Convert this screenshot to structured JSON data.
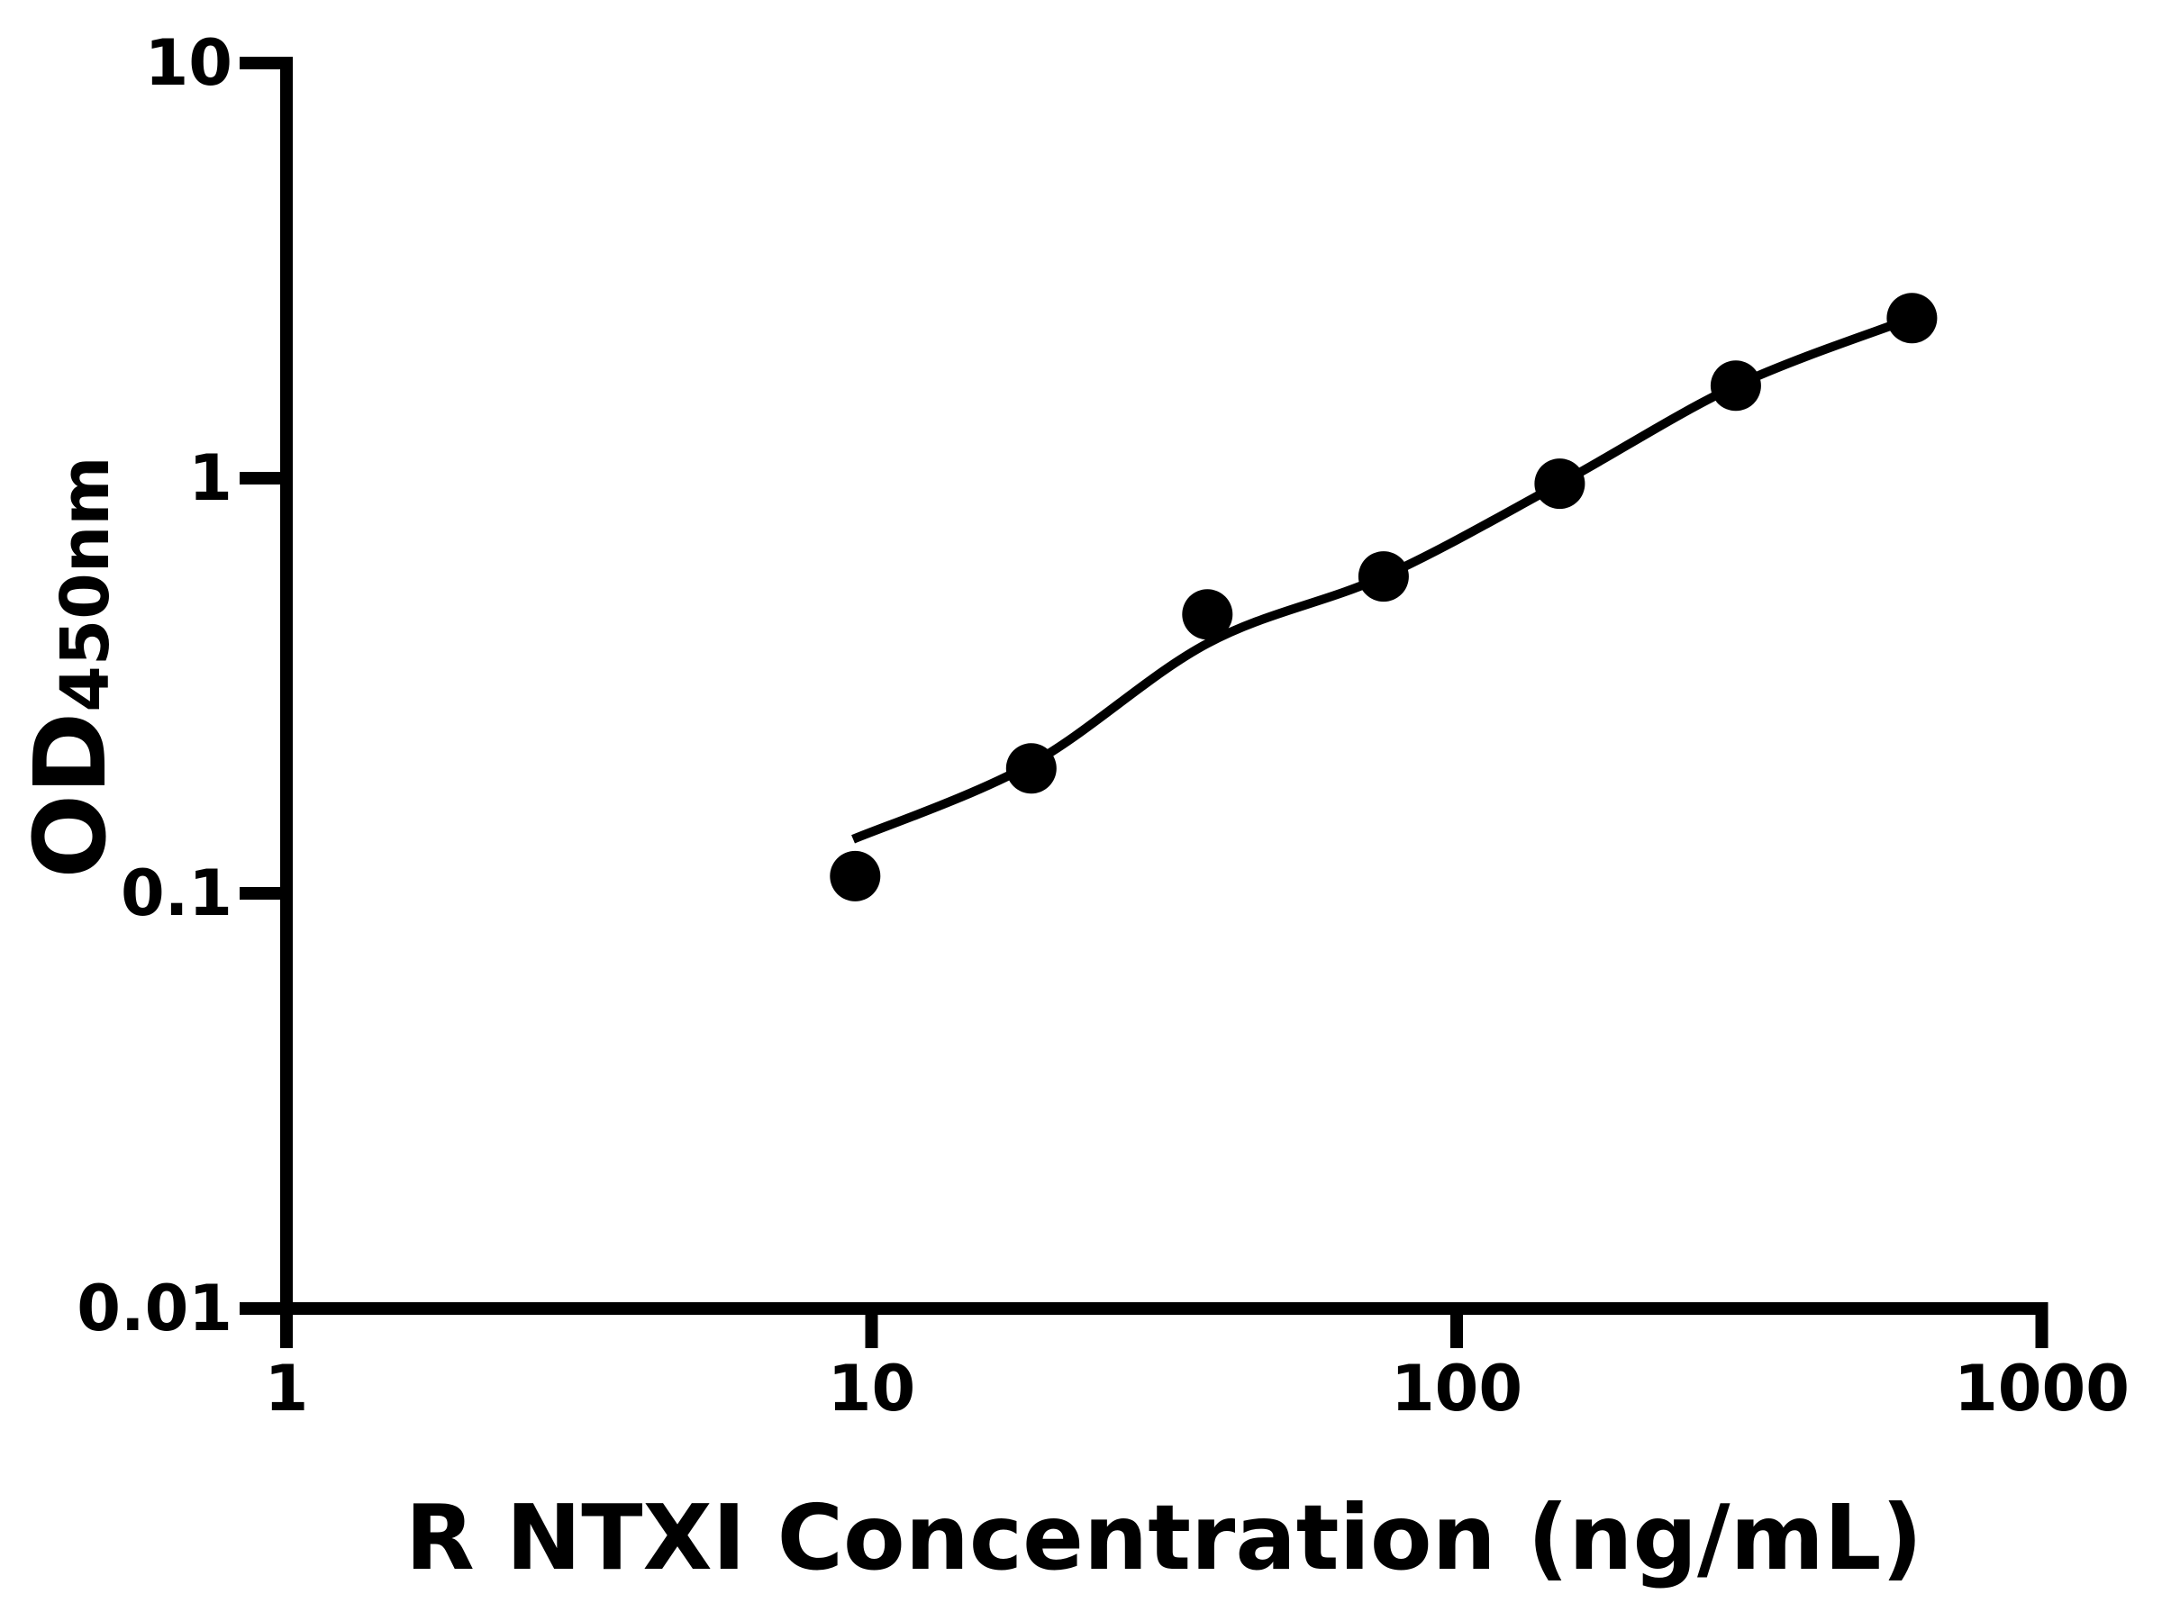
{
  "chart_data": {
    "type": "scatter",
    "title": "",
    "xlabel": "R NTXI Concentration (ng/mL)",
    "ylabel_main": "OD",
    "ylabel_sub": "450nm",
    "x_scale": "log",
    "y_scale": "log",
    "xlim": [
      1,
      1000
    ],
    "ylim": [
      0.01,
      10
    ],
    "grid": false,
    "legend": "none",
    "x_axis": {
      "ticks": [
        {
          "value": 1,
          "label": "1"
        },
        {
          "value": 10,
          "label": "10"
        },
        {
          "value": 100,
          "label": "100"
        },
        {
          "value": 1000,
          "label": "1000"
        }
      ]
    },
    "y_axis": {
      "ticks": [
        {
          "value": 10,
          "label": "10"
        },
        {
          "value": 1,
          "label": "1"
        },
        {
          "value": 0.1,
          "label": "0.1"
        },
        {
          "value": 0.01,
          "label": "0.01"
        }
      ]
    },
    "series": [
      {
        "name": "standard-curve-points",
        "marker": "filled-circle",
        "color": "#000000",
        "points": [
          {
            "x": 9.375,
            "y": 0.11
          },
          {
            "x": 18.75,
            "y": 0.2
          },
          {
            "x": 37.5,
            "y": 0.47
          },
          {
            "x": 75,
            "y": 0.58
          },
          {
            "x": 150,
            "y": 0.97
          },
          {
            "x": 300,
            "y": 1.67
          },
          {
            "x": 600,
            "y": 2.43
          }
        ]
      }
    ],
    "fit_curve": {
      "name": "fitted-line",
      "color": "#000000",
      "points": [
        [
          9.3,
          0.135
        ],
        [
          18.75,
          0.205
        ],
        [
          37.5,
          0.4
        ],
        [
          75,
          0.58
        ],
        [
          150,
          0.97
        ],
        [
          300,
          1.67
        ],
        [
          600,
          2.43
        ]
      ]
    },
    "colors": {
      "axis": "#000000",
      "marker": "#000000",
      "line": "#000000",
      "background": "#ffffff"
    }
  }
}
